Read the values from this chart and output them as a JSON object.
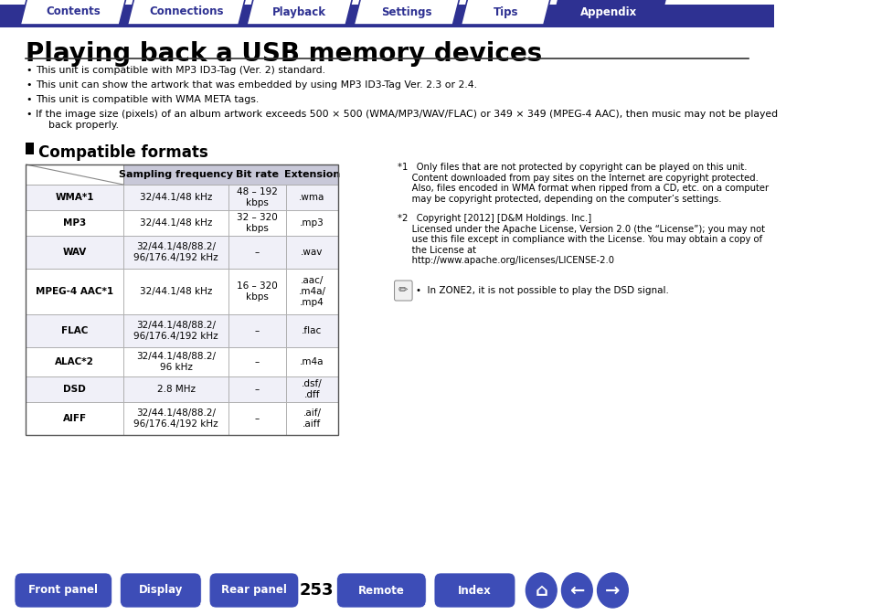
{
  "title": "Playing back a USB memory devices",
  "nav_tabs": [
    "Contents",
    "Connections",
    "Playback",
    "Settings",
    "Tips",
    "Appendix"
  ],
  "active_tab": "Appendix",
  "tab_color_active": "#2e3192",
  "tab_color_inactive": "#ffffff",
  "tab_border_color": "#2e3192",
  "tab_text_color_active": "#ffffff",
  "tab_text_color_inactive": "#2e3192",
  "nav_bar_color": "#2e3192",
  "bullet_points": [
    "This unit is compatible with MP3 ID3-Tag (Ver. 2) standard.",
    "This unit can show the artwork that was embedded by using MP3 ID3-Tag Ver. 2.3 or 2.4.",
    "This unit is compatible with WMA META tags.",
    "If the image size (pixels) of an album artwork exceeds 500 × 500 (WMA/MP3/WAV/FLAC) or 349 × 349 (MPEG-4 AAC), then music may not be played\n    back properly."
  ],
  "section_title": "Compatible formats",
  "table_headers": [
    "",
    "Sampling frequency",
    "Bit rate",
    "Extension"
  ],
  "table_rows": [
    [
      "WMA*1",
      "32/44.1/48 kHz",
      "48 – 192\nkbps",
      ".wma"
    ],
    [
      "MP3",
      "32/44.1/48 kHz",
      "32 – 320\nkbps",
      ".mp3"
    ],
    [
      "WAV",
      "32/44.1/48/88.2/\n96/176.4/192 kHz",
      "–",
      ".wav"
    ],
    [
      "MPEG-4 AAC*1",
      "32/44.1/48 kHz",
      "16 – 320\nkbps",
      ".aac/\n.m4a/\n.mp4"
    ],
    [
      "FLAC",
      "32/44.1/48/88.2/\n96/176.4/192 kHz",
      "–",
      ".flac"
    ],
    [
      "ALAC*2",
      "32/44.1/48/88.2/\n96 kHz",
      "–",
      ".m4a"
    ],
    [
      "DSD",
      "2.8 MHz",
      "–",
      ".dsf/\n.dff"
    ],
    [
      "AIFF",
      "32/44.1/48/88.2/\n96/176.4/192 kHz",
      "–",
      ".aif/\n.aiff"
    ]
  ],
  "notes": [
    "*1   Only files that are not protected by copyright can be played on this unit.\n     Content downloaded from pay sites on the Internet are copyright protected.\n     Also, files encoded in WMA format when ripped from a CD, etc. on a computer\n     may be copyright protected, depending on the computer’s settings.",
    "*2   Copyright [2012] [D&M Holdings. Inc.]\n     Licensed under the Apache License, Version 2.0 (the “License”); you may not\n     use this file except in compliance with the License. You may obtain a copy of\n     the License at\n     http://www.apache.org/licenses/LICENSE-2.0"
  ],
  "pencil_note": "•  In ZONE2, it is not possible to play the DSD signal.",
  "bottom_buttons": [
    "Front panel",
    "Display",
    "Rear panel",
    "Remote",
    "Index"
  ],
  "page_number": "253",
  "button_color": "#3d4db7",
  "background_color": "#ffffff",
  "text_color": "#000000",
  "header_bg_color": "#d0d0e8"
}
